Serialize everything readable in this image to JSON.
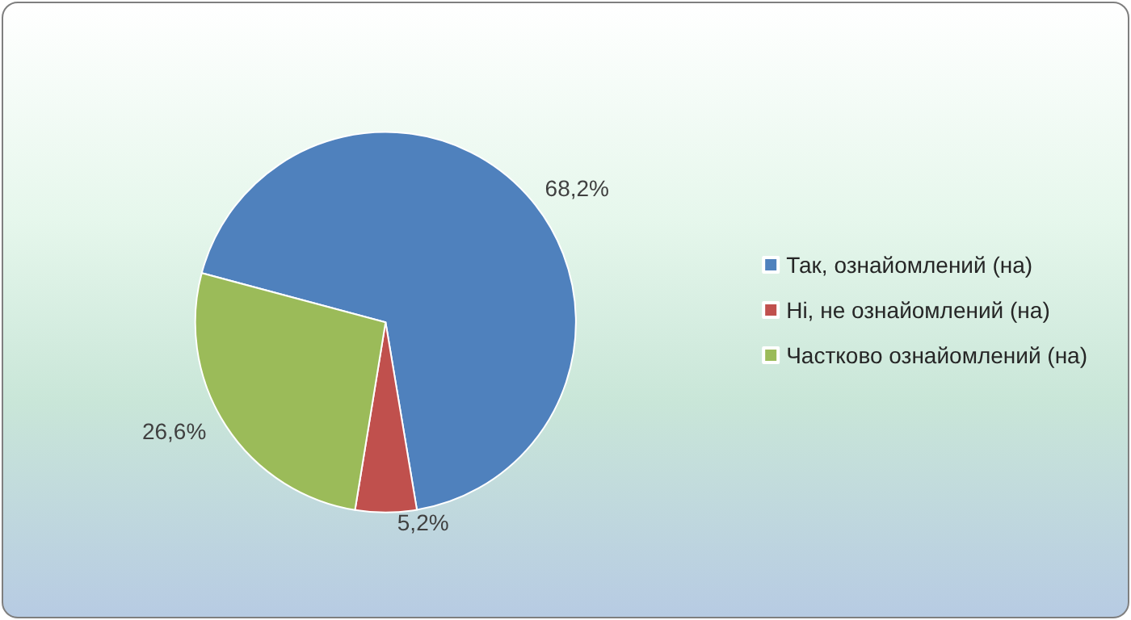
{
  "chart_data": {
    "type": "pie",
    "categories": [
      "Так, ознайомлений (на)",
      "Ні, не ознайомлений (на)",
      "Частково ознайомлений (на)"
    ],
    "values": [
      68.2,
      5.2,
      26.6
    ],
    "value_labels": [
      "68,2%",
      "5,2%",
      "26,6%"
    ],
    "colors": [
      "#4f81bd",
      "#c0504d",
      "#9bbb59"
    ],
    "legend": "right"
  }
}
